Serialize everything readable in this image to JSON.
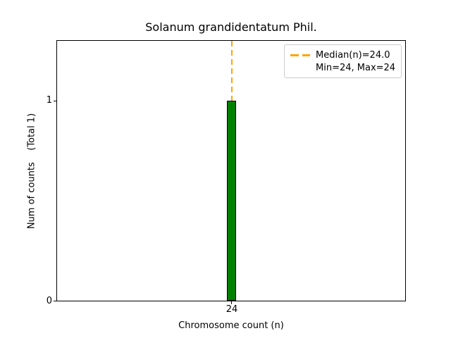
{
  "chart_data": {
    "type": "bar",
    "title": "Solanum grandidentatum Phil.",
    "xlabel": "Chromosome count (n)",
    "ylabel": "Num of counts    (Total 1)",
    "categories": [
      24
    ],
    "values": [
      1
    ],
    "total_counts": 1,
    "x_tick_labels": [
      "24"
    ],
    "y_tick_labels": [
      "0",
      "1"
    ],
    "ylim": [
      0,
      1.3
    ],
    "grid": false,
    "median_line": {
      "x": 24,
      "style": "dashed",
      "color": "#FFA500"
    },
    "legend": {
      "position": "upper right",
      "entries": [
        {
          "marker": "orange-dashed-line",
          "label": "Median(n)=24.0"
        },
        {
          "marker": "none",
          "label": "Min=24, Max=24"
        }
      ]
    },
    "stats": {
      "median": 24.0,
      "min": 24,
      "max": 24
    },
    "colors": {
      "bar_fill": "#008000",
      "bar_edge": "#000000",
      "median_line": "#FFA500",
      "axis": "#000000",
      "legend_border": "#cccccc",
      "background": "#ffffff",
      "text": "#000000"
    }
  }
}
